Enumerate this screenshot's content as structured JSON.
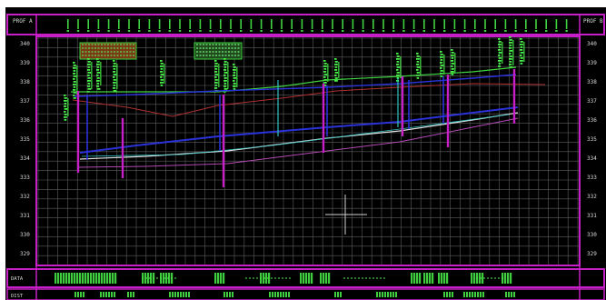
{
  "header": {
    "left_tag": "PROF A",
    "right_tag": "PROF B"
  },
  "axis": {
    "y_min": 329,
    "y_max": 340,
    "step": 1
  },
  "bottom_rows": {
    "row1_label": "DATA",
    "row2_label": "DIST"
  },
  "colors": {
    "background": "#000000",
    "grid": "#6a6a6a",
    "frame": "#c71fc7",
    "ground": "#3fd23f",
    "pipe": "#2a32d8",
    "crown": "#b03030",
    "annotation": "#4af04a",
    "station_post": "#c71fc7",
    "axis_text": "#d8d8d8",
    "crosshair": "#cfcfcf"
  }
}
